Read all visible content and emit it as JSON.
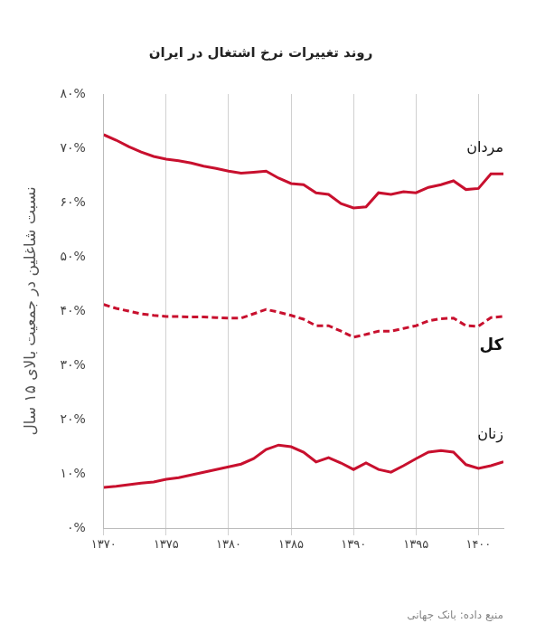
{
  "chart_data": {
    "type": "line",
    "title": "روند تغییرات نرخ اشتغال در ایران",
    "y_label": "نسبت شاغلین در جمعیت بالای ۱۵ سال",
    "source": "منبع داده: بانک جهانی",
    "x": [
      1370,
      1371,
      1372,
      1373,
      1374,
      1375,
      1376,
      1377,
      1378,
      1379,
      1380,
      1381,
      1382,
      1383,
      1384,
      1385,
      1386,
      1387,
      1388,
      1389,
      1390,
      1391,
      1392,
      1393,
      1394,
      1395,
      1396,
      1397,
      1398,
      1399,
      1400,
      1401,
      1402
    ],
    "series": [
      {
        "name": "مردان",
        "color": "#c8102e",
        "line_style": "solid",
        "values": [
          72.5,
          71.5,
          70.3,
          69.3,
          68.5,
          68.0,
          67.7,
          67.3,
          66.7,
          66.3,
          65.8,
          65.4,
          65.6,
          65.8,
          64.5,
          63.5,
          63.3,
          61.8,
          61.5,
          59.8,
          59.0,
          59.2,
          61.8,
          61.5,
          62.0,
          61.8,
          62.8,
          63.3,
          64.0,
          62.4,
          62.6,
          65.3,
          65.3
        ]
      },
      {
        "name": "کل",
        "color": "#c8102e",
        "line_style": "dashed",
        "values": [
          41.2,
          40.5,
          40.0,
          39.5,
          39.2,
          39.0,
          39.0,
          38.9,
          38.9,
          38.8,
          38.7,
          38.7,
          39.5,
          40.3,
          39.8,
          39.2,
          38.5,
          37.3,
          37.3,
          36.3,
          35.2,
          35.7,
          36.3,
          36.3,
          36.8,
          37.3,
          38.2,
          38.6,
          38.7,
          37.3,
          37.2,
          38.8,
          39.0
        ]
      },
      {
        "name": "زنان",
        "color": "#c8102e",
        "line_style": "solid",
        "values": [
          7.5,
          7.7,
          8.0,
          8.3,
          8.5,
          9.0,
          9.3,
          9.8,
          10.3,
          10.8,
          11.3,
          11.8,
          12.8,
          14.5,
          15.3,
          15.0,
          14.0,
          12.2,
          13.0,
          12.0,
          10.8,
          12.0,
          10.8,
          10.3,
          11.5,
          12.8,
          14.0,
          14.3,
          14.0,
          11.7,
          11.0,
          11.5,
          12.2
        ]
      }
    ],
    "xlim": [
      1370,
      1402
    ],
    "xticks": [
      {
        "value": 1370,
        "label": "۱۳۷۰"
      },
      {
        "value": 1375,
        "label": "۱۳۷۵"
      },
      {
        "value": 1380,
        "label": "۱۳۸۰"
      },
      {
        "value": 1385,
        "label": "۱۳۸۵"
      },
      {
        "value": 1390,
        "label": "۱۳۹۰"
      },
      {
        "value": 1395,
        "label": "۱۳۹۵"
      },
      {
        "value": 1400,
        "label": "۱۴۰۰"
      }
    ],
    "ylim": [
      0,
      80
    ],
    "yticks": [
      {
        "value": 0,
        "label": "۰%"
      },
      {
        "value": 10,
        "label": "۱۰%"
      },
      {
        "value": 20,
        "label": "۲۰%"
      },
      {
        "value": 30,
        "label": "۳۰%"
      },
      {
        "value": 40,
        "label": "۴۰%"
      },
      {
        "value": 50,
        "label": "۵۰%"
      },
      {
        "value": 60,
        "label": "۶۰%"
      },
      {
        "value": 70,
        "label": "۷۰%"
      },
      {
        "value": 80,
        "label": "۸۰%"
      }
    ],
    "grid": "x"
  }
}
